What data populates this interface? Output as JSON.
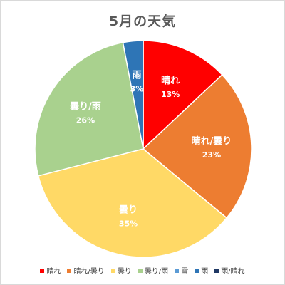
{
  "chart_data": {
    "type": "pie",
    "title": "5月の天気",
    "slices": [
      {
        "name": "晴れ",
        "value": 13,
        "label": "13%",
        "color": "#ff0000"
      },
      {
        "name": "晴れ/曇り",
        "value": 23,
        "label": "23%",
        "color": "#ed7d31"
      },
      {
        "name": "曇り",
        "value": 35,
        "label": "35%",
        "color": "#ffd966"
      },
      {
        "name": "曇り/雨",
        "value": 26,
        "label": "26%",
        "color": "#a9d18e"
      },
      {
        "name": "雪",
        "value": 0,
        "label": "",
        "color": "#5b9bd5"
      },
      {
        "name": "雨",
        "value": 3,
        "label": "3%",
        "color": "#2e75b6"
      },
      {
        "name": "雨/晴れ",
        "value": 0,
        "label": "",
        "color": "#1f3864"
      }
    ],
    "legend_position": "bottom",
    "start": "12 o'clock, clockwise"
  }
}
